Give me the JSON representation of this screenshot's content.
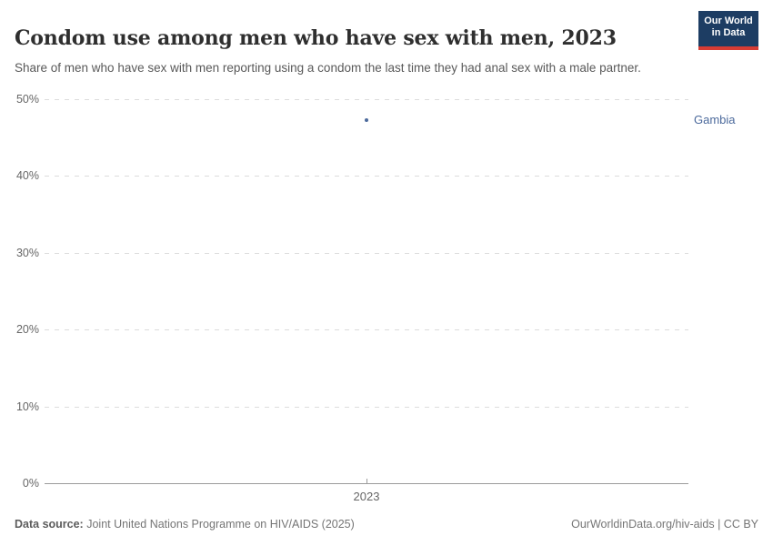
{
  "header": {
    "title": "Condom use among men who have sex with men, 2023",
    "subtitle": "Share of men who have sex with men reporting using a condom the last time they had anal sex with a male partner.",
    "logo": {
      "line1": "Our World",
      "line2": "in Data",
      "bg_color": "#1d3d63",
      "accent_color": "#d73c34"
    }
  },
  "chart_data": {
    "type": "scatter",
    "title": "Condom use among men who have sex with men, 2023",
    "x": [
      2023
    ],
    "series": [
      {
        "name": "Gambia",
        "values": [
          47.3
        ],
        "color": "#4c6a9c"
      }
    ],
    "xlabel": "",
    "ylabel": "",
    "ylim": [
      0,
      50
    ],
    "yticks": [
      0,
      10,
      20,
      30,
      40,
      50
    ],
    "ytick_suffix": "%",
    "xticks": [
      "2023"
    ],
    "grid": true,
    "grid_style": "dashed",
    "legend_position": "right-of-plot"
  },
  "footer": {
    "datasource_label": "Data source:",
    "datasource_value": "Joint United Nations Programme on HIV/AIDS (2025)",
    "credit": "OurWorldinData.org/hiv-aids | CC BY"
  }
}
